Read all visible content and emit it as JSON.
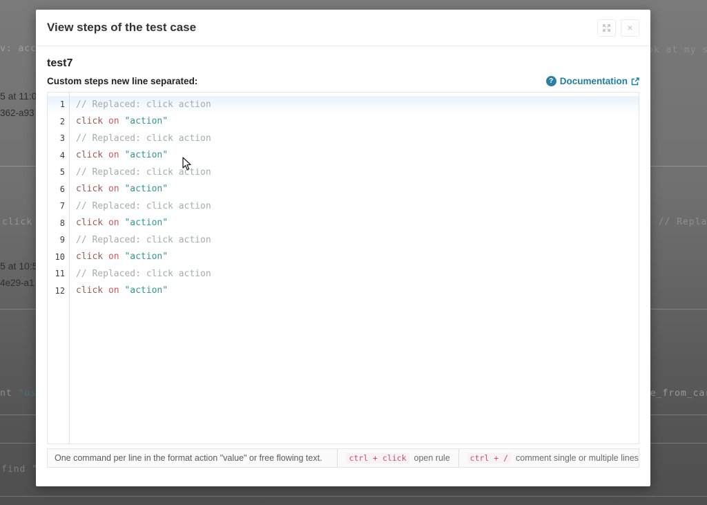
{
  "modal": {
    "title": "View steps of the test case",
    "close_glyph": "×",
    "test_name": "test7",
    "steps_label": "Custom steps new line separated:",
    "documentation": {
      "help_glyph": "?",
      "label": "Documentation"
    },
    "editor": {
      "lines": [
        {
          "n": "1",
          "type": "comment",
          "text": "// Replaced: click action"
        },
        {
          "n": "2",
          "type": "command",
          "keyword": "click",
          "preposition": "on",
          "value": "\"action\""
        },
        {
          "n": "3",
          "type": "comment",
          "text": "// Replaced: click action"
        },
        {
          "n": "4",
          "type": "command",
          "keyword": "click",
          "preposition": "on",
          "value": "\"action\""
        },
        {
          "n": "5",
          "type": "comment",
          "text": "// Replaced: click action"
        },
        {
          "n": "6",
          "type": "command",
          "keyword": "click",
          "preposition": "on",
          "value": "\"action\""
        },
        {
          "n": "7",
          "type": "comment",
          "text": "// Replaced: click action"
        },
        {
          "n": "8",
          "type": "command",
          "keyword": "click",
          "preposition": "on",
          "value": "\"action\""
        },
        {
          "n": "9",
          "type": "comment",
          "text": "// Replaced: click action"
        },
        {
          "n": "10",
          "type": "command",
          "keyword": "click",
          "preposition": "on",
          "value": "\"action\""
        },
        {
          "n": "11",
          "type": "comment",
          "text": "// Replaced: click action"
        },
        {
          "n": "12",
          "type": "command",
          "keyword": "click",
          "preposition": "on",
          "value": "\"action\""
        }
      ]
    },
    "footer": {
      "hint": "One command per line in the format action \"value\" or free flowing text.",
      "shortcut1_keys": "ctrl + click",
      "shortcut1_label": "open rule",
      "shortcut2_keys": "ctrl + /",
      "shortcut2_label": "comment single or multiple lines"
    }
  },
  "background": {
    "bg1": "v: accou",
    "bg2": "5 at 11:0",
    "bg3": "362-a93",
    "bg4": "click",
    "bg5": "5 at 10:5",
    "bg6": "4e29-a1",
    "bg7a": "nt ",
    "bg7b": "\"user",
    "bg8": "find \";",
    "bg9": "ok at my sh",
    "bg10": ". // Replac",
    "bg11": "ve_from_car"
  },
  "icons": {
    "expand": "arrows-out",
    "close": "x",
    "help": "question-circle",
    "external": "external-link",
    "cursor": "mouse-arrow"
  },
  "colors": {
    "accent_blue": "#1e7ca8",
    "keyword": "#9a5b55",
    "preposition": "#d4555e",
    "string": "#2f9a8b",
    "comment": "#a6abb0",
    "shortcut_code": "#c0517c",
    "active_line": "#e6f2fb"
  }
}
